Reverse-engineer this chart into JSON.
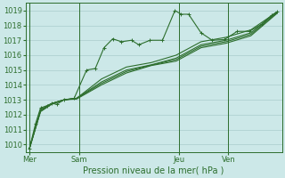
{
  "title": "",
  "xlabel": "Pression niveau de la mer( hPa )",
  "bg_color": "#cce8e8",
  "grid_color": "#aacccc",
  "line_color": "#2d6e2d",
  "ylim": [
    1009.5,
    1019.5
  ],
  "yticks": [
    1010,
    1011,
    1012,
    1013,
    1014,
    1015,
    1016,
    1017,
    1018,
    1019
  ],
  "xtick_labels": [
    "Mer",
    "Sam",
    "Jeu",
    "Ven"
  ],
  "xtick_positions": [
    0,
    2,
    6,
    8
  ],
  "vlines": [
    0,
    2,
    6,
    8
  ],
  "xlim": [
    -0.15,
    10.15
  ],
  "series": [
    [
      0.0,
      1009.7,
      0.25,
      1011.4,
      0.45,
      1012.45,
      0.7,
      1012.6,
      0.9,
      1012.75,
      1.1,
      1012.7,
      1.4,
      1013.0,
      1.8,
      1013.1,
      2.3,
      1015.0,
      2.65,
      1015.1,
      3.0,
      1016.5,
      3.35,
      1017.1,
      3.7,
      1016.9,
      4.1,
      1017.0,
      4.4,
      1016.7,
      4.85,
      1017.0,
      5.35,
      1017.0,
      5.85,
      1019.0,
      6.1,
      1018.75,
      6.4,
      1018.75,
      6.9,
      1017.5,
      7.35,
      1017.0,
      7.85,
      1017.05,
      8.35,
      1017.6,
      8.85,
      1017.6,
      9.35,
      1018.1,
      9.75,
      1018.7,
      9.95,
      1018.9
    ],
    [
      0.0,
      1009.7,
      0.45,
      1012.35,
      0.9,
      1012.75,
      1.4,
      1013.0,
      1.9,
      1013.1,
      2.9,
      1014.4,
      3.9,
      1015.2,
      4.9,
      1015.5,
      5.9,
      1016.0,
      6.9,
      1016.9,
      7.9,
      1017.2,
      8.9,
      1017.7,
      9.95,
      1018.9
    ],
    [
      0.0,
      1009.7,
      0.45,
      1012.25,
      0.9,
      1012.75,
      1.4,
      1013.0,
      1.9,
      1013.1,
      2.9,
      1014.2,
      3.9,
      1015.0,
      4.9,
      1015.35,
      5.9,
      1015.8,
      6.9,
      1016.7,
      7.9,
      1017.0,
      8.9,
      1017.5,
      9.95,
      1018.9
    ],
    [
      0.0,
      1009.7,
      0.45,
      1012.2,
      0.9,
      1012.7,
      1.4,
      1013.0,
      1.9,
      1013.05,
      2.9,
      1014.0,
      3.9,
      1014.8,
      4.9,
      1015.3,
      5.9,
      1015.6,
      6.9,
      1016.5,
      7.9,
      1016.8,
      8.9,
      1017.3,
      9.95,
      1018.8
    ],
    [
      0.0,
      1009.7,
      0.45,
      1012.25,
      0.9,
      1012.75,
      1.4,
      1013.0,
      1.9,
      1013.08,
      2.9,
      1014.1,
      3.9,
      1014.9,
      4.9,
      1015.33,
      5.9,
      1015.7,
      6.9,
      1016.6,
      7.9,
      1016.9,
      8.9,
      1017.4,
      9.95,
      1018.85
    ]
  ],
  "series_markers": [
    true,
    false,
    false,
    false,
    false
  ],
  "tick_fontsize": 6,
  "xlabel_fontsize": 7
}
